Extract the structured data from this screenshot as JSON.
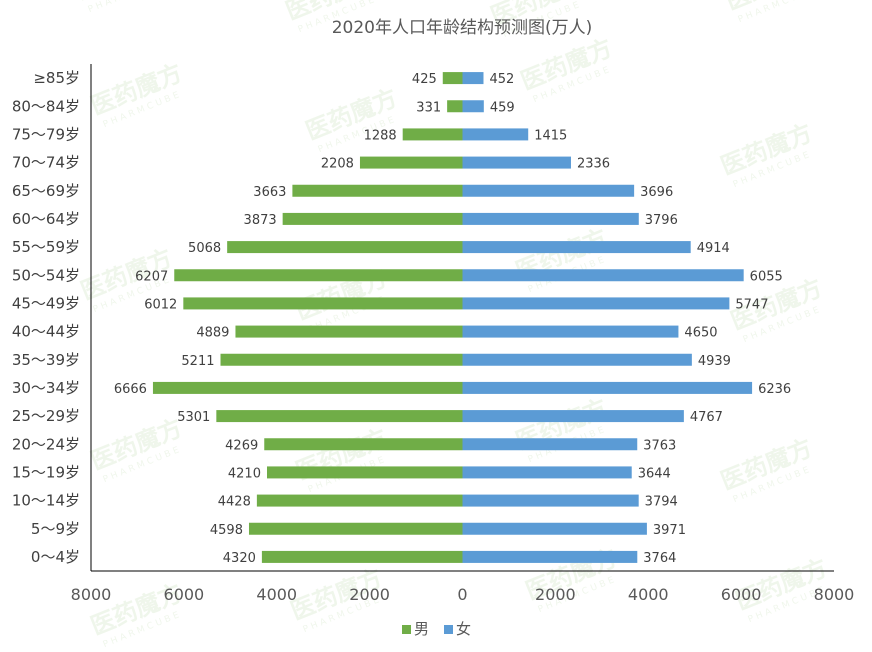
{
  "chart_data": {
    "type": "bar",
    "orientation": "horizontal",
    "layout": "population-pyramid",
    "title": "2020年人口年龄结构预测图(万人)",
    "categories": [
      "≥85岁",
      "80～84岁",
      "75～79岁",
      "70～74岁",
      "65～69岁",
      "60～64岁",
      "55～59岁",
      "50～54岁",
      "45～49岁",
      "40～44岁",
      "35～39岁",
      "30～34岁",
      "25～29岁",
      "20～24岁",
      "15～19岁",
      "10～14岁",
      "5～9岁",
      "0～4岁"
    ],
    "series": [
      {
        "name": "男",
        "color": "#70ad47",
        "side": "left",
        "values": [
          425,
          331,
          1288,
          2208,
          3663,
          3873,
          5068,
          6207,
          6012,
          4889,
          5211,
          6666,
          5301,
          4269,
          4210,
          4428,
          4598,
          4320
        ]
      },
      {
        "name": "女",
        "color": "#5b9bd5",
        "side": "right",
        "values": [
          452,
          459,
          1415,
          2336,
          3696,
          3796,
          4914,
          6055,
          5747,
          4650,
          4939,
          6236,
          4767,
          3763,
          3644,
          3794,
          3971,
          3764
        ]
      }
    ],
    "x_ticks": [
      "8000",
      "6000",
      "4000",
      "2000",
      "0",
      "2000",
      "4000",
      "6000",
      "8000"
    ],
    "xlim": [
      -8000,
      8000
    ],
    "legend_position": "bottom",
    "grid": false
  },
  "watermark": {
    "text": "医药魔方",
    "subtext": "PHARMCUBE"
  }
}
